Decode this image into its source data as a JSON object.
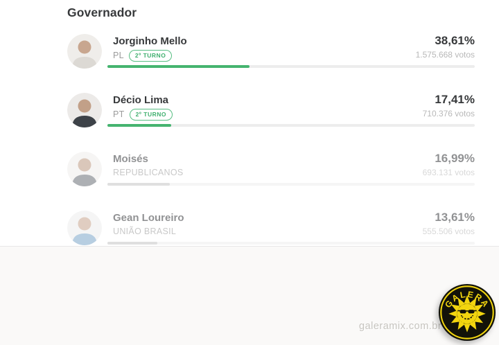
{
  "page": {
    "title": "Governador"
  },
  "candidates": [
    {
      "name": "Jorginho Mello",
      "party": "PL",
      "badge": "2º TURNO",
      "percent": "38,61%",
      "votes": "1.575.668 votos",
      "percent_value": 38.61,
      "qualified": true
    },
    {
      "name": "Décio Lima",
      "party": "PT",
      "badge": "2º TURNO",
      "percent": "17,41%",
      "votes": "710.376 votos",
      "percent_value": 17.41,
      "qualified": true
    },
    {
      "name": "Moisés",
      "party": "REPUBLICANOS",
      "badge": "",
      "percent": "16,99%",
      "votes": "693.131 votos",
      "percent_value": 16.99,
      "qualified": false
    },
    {
      "name": "Gean Loureiro",
      "party": "UNIÃO BRASIL",
      "badge": "",
      "percent": "13,61%",
      "votes": "555.506 votos",
      "percent_value": 13.61,
      "qualified": false
    }
  ],
  "colors": {
    "accent_green": "#45b46f",
    "badge_green": "#3faf6e",
    "gray_bar": "#c5c5c5",
    "track": "#ededed",
    "text_dark": "#37393b",
    "text_muted": "#9b9b9b",
    "votes_text": "#b8b8b8",
    "logo_yellow": "#f2d50f",
    "logo_black": "#121209"
  },
  "watermark": {
    "text": "galeramix.com.br"
  },
  "logo": {
    "top_text": "GALERA",
    "bottom_text": "MIX"
  }
}
